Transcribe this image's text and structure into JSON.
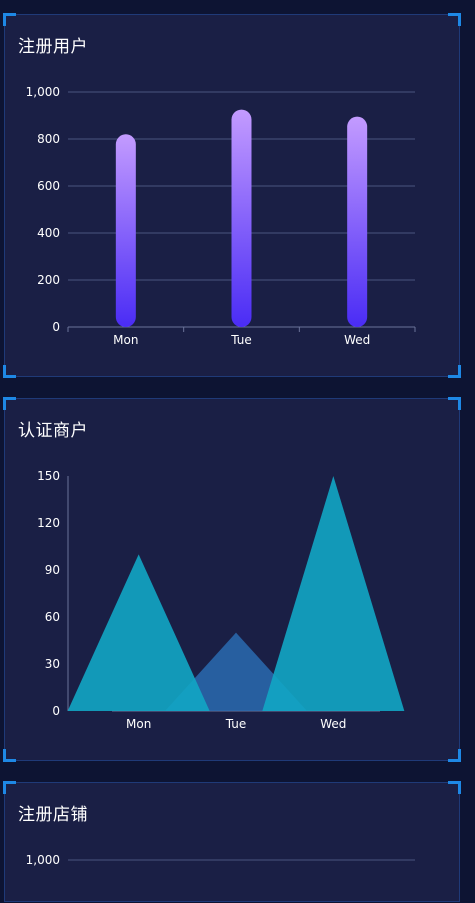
{
  "panels": [
    {
      "title": "注册用户"
    },
    {
      "title": "认证商户"
    },
    {
      "title": "注册店铺"
    }
  ],
  "chart_data": [
    {
      "type": "bar",
      "categories": [
        "Mon",
        "Tue",
        "Wed"
      ],
      "values": [
        820,
        925,
        895
      ],
      "yticks": [
        0,
        200,
        400,
        600,
        800,
        1000
      ],
      "ytick_labels": [
        "0",
        "200",
        "400",
        "600",
        "800",
        "1,000"
      ],
      "ylim": [
        0,
        1000
      ],
      "grid": true,
      "colors": {
        "bar_top": "#c39bff",
        "bar_bottom": "#4a2cf5"
      }
    },
    {
      "type": "area",
      "categories": [
        "Mon",
        "Tue",
        "Wed"
      ],
      "values": [
        100,
        50,
        150
      ],
      "yticks": [
        0,
        30,
        60,
        90,
        120,
        150
      ],
      "ylim": [
        0,
        150
      ],
      "grid": false,
      "colors": {
        "peak": "#12a6c4",
        "middle": "#2a6bb0"
      }
    },
    {
      "type": "bar",
      "yticks": [
        1000
      ],
      "ytick_labels": [
        "1,000"
      ],
      "grid": true
    }
  ]
}
